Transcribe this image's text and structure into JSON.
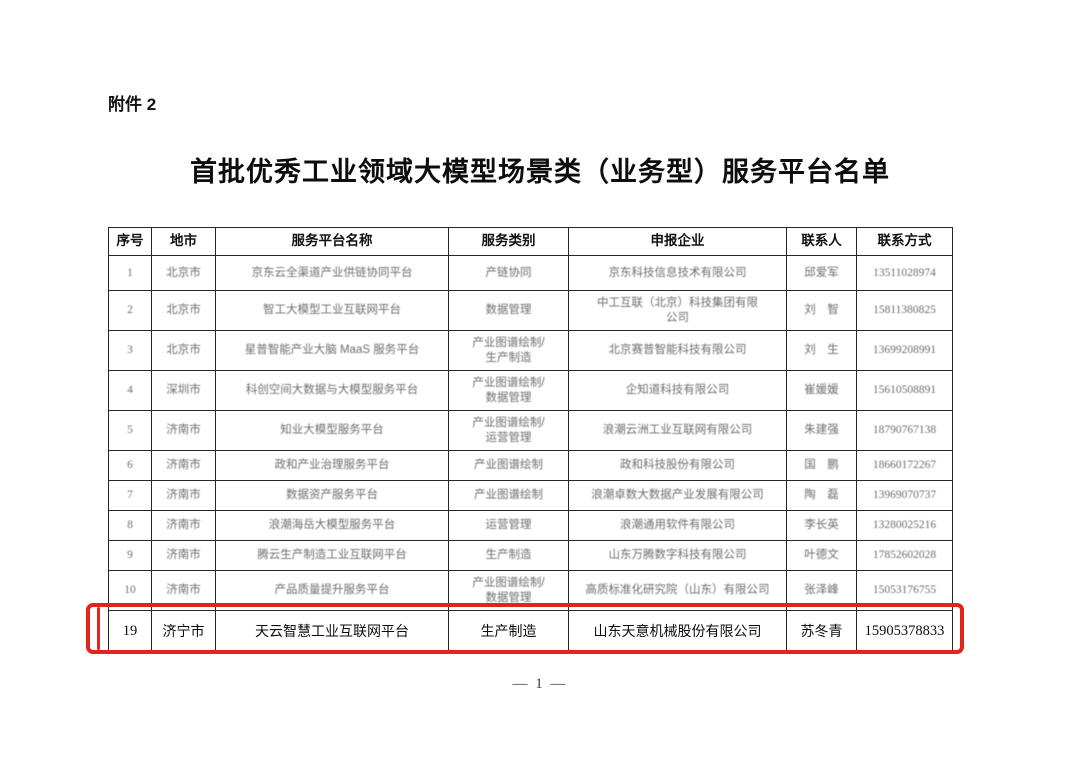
{
  "page": {
    "attachment_label": "附件 2",
    "title": "首批优秀工业领域大模型场景类（业务型）服务平台名单",
    "footer_page_number": "— 1 —"
  },
  "accent_color": "#e1251c",
  "table": {
    "headers": [
      "序号",
      "地市",
      "服务平台名称",
      "服务类别",
      "申报企业",
      "联系人",
      "联系方式"
    ],
    "column_keys": [
      "no",
      "city",
      "platform",
      "category",
      "company",
      "contact",
      "phone"
    ],
    "rows": [
      {
        "no": "1",
        "city": "北京市",
        "platform": "京东云全渠道产业供链协同平台",
        "category": "产链协同",
        "company": "京东科技信息技术有限公司",
        "contact": "邱爱军",
        "phone": "13511028974"
      },
      {
        "no": "2",
        "city": "北京市",
        "platform": "智工大模型工业互联网平台",
        "category": "数据管理",
        "company": "中工互联（北京）科技集团有限\n公司",
        "contact": "刘　智",
        "phone": "15811380825"
      },
      {
        "no": "3",
        "city": "北京市",
        "platform": "星普智能产业大脑 MaaS 服务平台",
        "category": "产业图谱绘制/\n生产制造",
        "company": "北京赛普智能科技有限公司",
        "contact": "刘　生",
        "phone": "13699208991"
      },
      {
        "no": "4",
        "city": "深圳市",
        "platform": "科创空间大数据与大模型服务平台",
        "category": "产业图谱绘制/\n数据管理",
        "company": "企知道科技有限公司",
        "contact": "崔媛媛",
        "phone": "15610508891"
      },
      {
        "no": "5",
        "city": "济南市",
        "platform": "知业大模型服务平台",
        "category": "产业图谱绘制/\n运营管理",
        "company": "浪潮云洲工业互联网有限公司",
        "contact": "朱建强",
        "phone": "18790767138"
      },
      {
        "no": "6",
        "city": "济南市",
        "platform": "政和产业治理服务平台",
        "category": "产业图谱绘制",
        "company": "政和科技股份有限公司",
        "contact": "国　鹏",
        "phone": "18660172267"
      },
      {
        "no": "7",
        "city": "济南市",
        "platform": "数据资产服务平台",
        "category": "产业图谱绘制",
        "company": "浪潮卓数大数据产业发展有限公司",
        "contact": "陶　磊",
        "phone": "13969070737"
      },
      {
        "no": "8",
        "city": "济南市",
        "platform": "浪潮海岳大模型服务平台",
        "category": "运营管理",
        "company": "浪潮通用软件有限公司",
        "contact": "李长英",
        "phone": "13280025216"
      },
      {
        "no": "9",
        "city": "济南市",
        "platform": "腾云生产制造工业互联网平台",
        "category": "生产制造",
        "company": "山东万腾数字科技有限公司",
        "contact": "叶德文",
        "phone": "17852602028"
      },
      {
        "no": "10",
        "city": "济南市",
        "platform": "产品质量提升服务平台",
        "category": "产业图谱绘制/\n数据管理",
        "company": "高质标准化研究院（山东）有限公司",
        "contact": "张泽峰",
        "phone": "15053176755"
      }
    ],
    "highlighted_row": {
      "no": "19",
      "city": "济宁市",
      "platform": "天云智慧工业互联网平台",
      "category": "生产制造",
      "company": "山东天意机械股份有限公司",
      "contact": "苏冬青",
      "phone": "15905378833"
    }
  }
}
